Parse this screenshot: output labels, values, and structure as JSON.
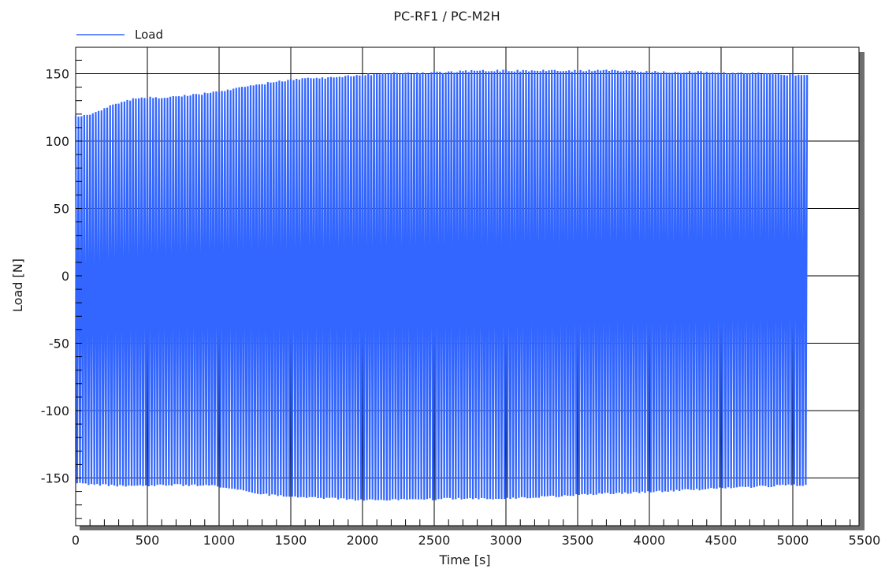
{
  "chart_data": {
    "type": "line",
    "title": "PC-RF1 / PC-M2H",
    "xlabel": "Time [s]",
    "ylabel": "Load [N]",
    "xlim": [
      0,
      5500
    ],
    "ylim": [
      -185,
      170
    ],
    "x_ticks": [
      0,
      500,
      1000,
      1500,
      2000,
      2500,
      3000,
      3500,
      4000,
      4500,
      5000,
      5500
    ],
    "y_ticks": [
      -150,
      -100,
      -50,
      0,
      50,
      100,
      150
    ],
    "grid": true,
    "legend": {
      "position": "top-left",
      "entries": [
        "Load"
      ]
    },
    "series": [
      {
        "name": "Load",
        "color": "#3366ff",
        "x_range": [
          0,
          5100
        ],
        "upper_envelope": {
          "x": [
            0,
            100,
            200,
            300,
            400,
            500,
            600,
            700,
            800,
            900,
            1000,
            1200,
            1400,
            1600,
            1800,
            2000,
            2200,
            2400,
            2600,
            2800,
            3000,
            3200,
            3400,
            3600,
            3800,
            4000,
            4200,
            4400,
            4600,
            4800,
            5000,
            5100
          ],
          "values": [
            119,
            121,
            125,
            129,
            132,
            133,
            133,
            134,
            135,
            136,
            138,
            141,
            145,
            147,
            148,
            150,
            151,
            151,
            152,
            153,
            153,
            153,
            153,
            153,
            153,
            152,
            152,
            152,
            151,
            151,
            150,
            150
          ]
        },
        "lower_envelope": {
          "x": [
            0,
            200,
            400,
            600,
            800,
            1000,
            1200,
            1400,
            1600,
            1800,
            2000,
            2200,
            2400,
            2600,
            2800,
            3000,
            3200,
            3400,
            3600,
            3800,
            4000,
            4200,
            4400,
            4600,
            4800,
            5000,
            5100
          ],
          "values": [
            -155,
            -156,
            -157,
            -156,
            -156,
            -157,
            -161,
            -164,
            -165,
            -166,
            -167,
            -167,
            -167,
            -166,
            -166,
            -166,
            -165,
            -164,
            -163,
            -162,
            -161,
            -160,
            -159,
            -158,
            -157,
            -156,
            -156
          ]
        }
      }
    ]
  }
}
